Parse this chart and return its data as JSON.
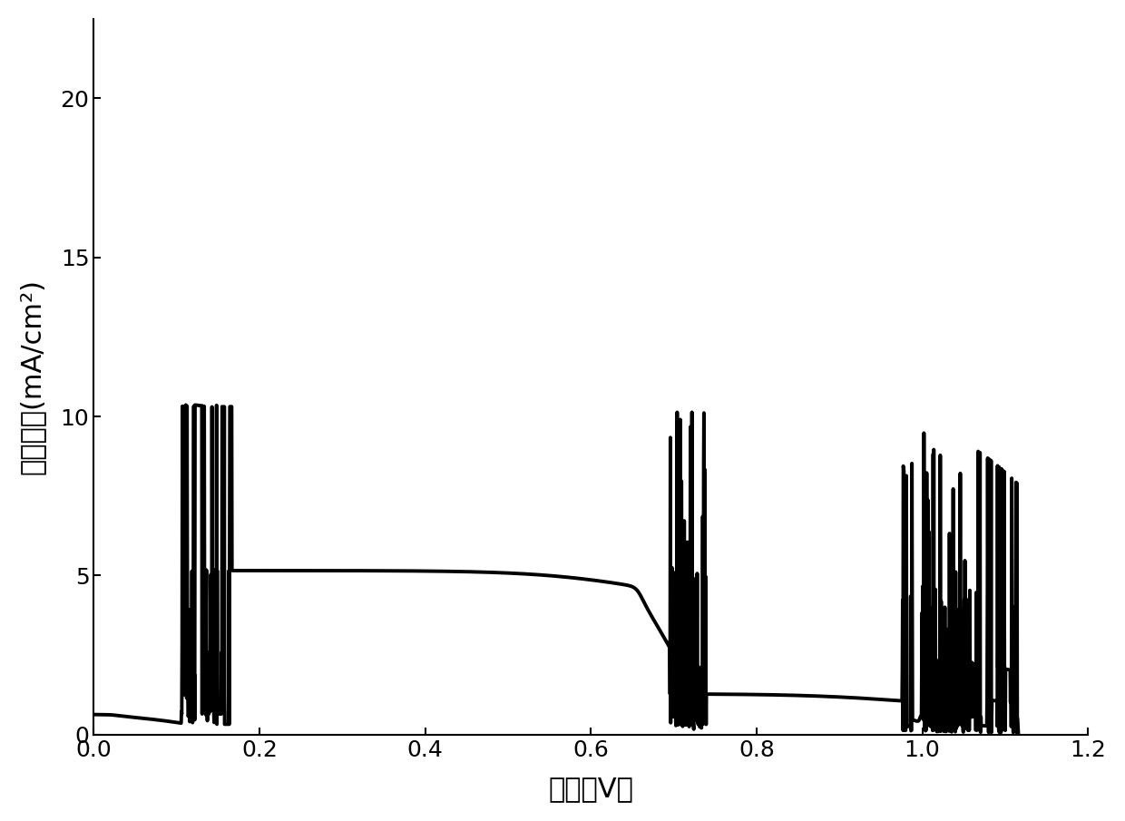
{
  "xlabel": "电压（V）",
  "ylabel": "电流密度(mA/cm²)",
  "xlim": [
    0.0,
    1.2
  ],
  "ylim": [
    0.0,
    22.5
  ],
  "xticks": [
    0.0,
    0.2,
    0.4,
    0.6,
    0.8,
    1.0,
    1.2
  ],
  "yticks": [
    0,
    5,
    10,
    15,
    20
  ],
  "line_color": "#000000",
  "line_width": 2.8,
  "Jsc": 20.3,
  "Voc": 1.1,
  "background_color": "#ffffff",
  "tick_fontsize": 18,
  "label_fontsize": 22,
  "Rsh": 150.0,
  "Rs": 1.8,
  "J0": 2e-09,
  "n": 2.2
}
